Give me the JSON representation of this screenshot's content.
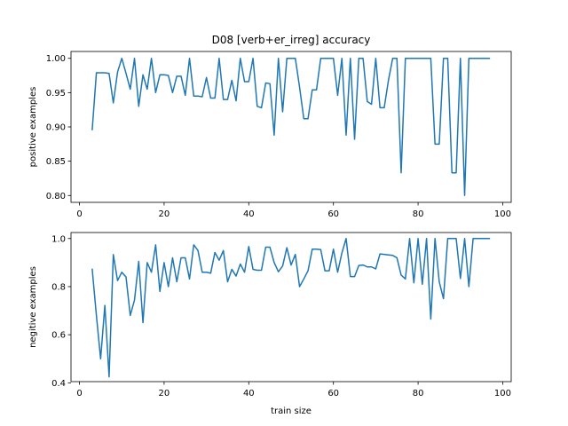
{
  "chart_data": {
    "title": "D08 [verb+er_irreg] accuracy",
    "type": "line",
    "color": "#1f77b4",
    "subplots": [
      {
        "type": "line",
        "ylabel": "positive examples",
        "xlabel": "",
        "xlim": [
          -2,
          102
        ],
        "ylim": [
          0.79,
          1.01
        ],
        "xticks": [
          0,
          20,
          40,
          60,
          80,
          100
        ],
        "yticks": [
          0.8,
          0.85,
          0.9,
          0.95,
          1.0
        ],
        "ytick_labels": [
          "0.80",
          "0.85",
          "0.90",
          "0.95",
          "1.00"
        ],
        "grid": false,
        "series": [
          {
            "x": [
              3,
              4,
              5,
              6,
              7,
              8,
              9,
              10,
              11,
              12,
              13,
              14,
              15,
              16,
              17,
              18,
              19,
              20,
              21,
              22,
              23,
              24,
              25,
              26,
              27,
              28,
              29,
              30,
              31,
              32,
              33,
              34,
              35,
              36,
              37,
              38,
              39,
              40,
              41,
              42,
              43,
              44,
              45,
              46,
              47,
              48,
              49,
              50,
              51,
              52,
              53,
              54,
              55,
              56,
              57,
              58,
              59,
              60,
              61,
              62,
              63,
              64,
              65,
              66,
              67,
              68,
              69,
              70,
              71,
              72,
              73,
              74,
              75,
              76,
              77,
              78,
              79,
              80,
              81,
              82,
              83,
              84,
              85,
              86,
              87,
              88,
              89,
              90,
              91,
              92,
              93,
              94,
              95,
              96,
              97
            ],
            "y": [
              0.895,
              0.979,
              0.979,
              0.979,
              0.978,
              0.935,
              0.98,
              1.0,
              0.978,
              0.955,
              1.0,
              0.93,
              0.976,
              0.955,
              1.0,
              0.95,
              0.976,
              0.976,
              0.975,
              0.95,
              0.974,
              0.974,
              0.946,
              1.0,
              0.945,
              0.945,
              0.944,
              0.972,
              0.942,
              0.942,
              1.0,
              0.94,
              0.94,
              0.968,
              0.938,
              1.0,
              0.966,
              0.966,
              1.0,
              0.93,
              0.928,
              0.964,
              0.963,
              0.888,
              1.0,
              0.922,
              1.0,
              1.0,
              1.0,
              0.958,
              0.912,
              0.912,
              0.954,
              0.954,
              1.0,
              1.0,
              1.0,
              1.0,
              0.946,
              1.0,
              0.888,
              1.0,
              0.882,
              1.0,
              1.0,
              0.937,
              0.933,
              1.0,
              0.928,
              0.928,
              0.968,
              1.0,
              1.0,
              0.833,
              1.0,
              1.0,
              1.0,
              1.0,
              1.0,
              1.0,
              1.0,
              0.875,
              0.875,
              1.0,
              1.0,
              0.833,
              0.833,
              1.0,
              0.8,
              1.0,
              1.0,
              1.0,
              1.0,
              1.0,
              1.0
            ]
          }
        ]
      },
      {
        "type": "line",
        "ylabel": "negitive examples",
        "xlabel": "train size",
        "xlim": [
          -2,
          102
        ],
        "ylim": [
          0.405,
          1.025
        ],
        "xticks": [
          0,
          20,
          40,
          60,
          80,
          100
        ],
        "yticks": [
          0.4,
          0.6,
          0.8,
          1.0
        ],
        "ytick_labels": [
          "0.4",
          "0.6",
          "0.8",
          "1.0"
        ],
        "grid": false,
        "series": [
          {
            "x": [
              3,
              4,
              5,
              6,
              7,
              8,
              9,
              10,
              11,
              12,
              13,
              14,
              15,
              16,
              17,
              18,
              19,
              20,
              21,
              22,
              23,
              24,
              25,
              26,
              27,
              28,
              29,
              30,
              31,
              32,
              33,
              34,
              35,
              36,
              37,
              38,
              39,
              40,
              41,
              42,
              43,
              44,
              45,
              46,
              47,
              48,
              49,
              50,
              51,
              52,
              53,
              54,
              55,
              56,
              57,
              58,
              59,
              60,
              61,
              62,
              63,
              64,
              65,
              66,
              67,
              68,
              69,
              70,
              71,
              72,
              73,
              74,
              75,
              76,
              77,
              78,
              79,
              80,
              81,
              82,
              83,
              84,
              85,
              86,
              87,
              88,
              89,
              90,
              91,
              92,
              93,
              94,
              95,
              96,
              97
            ],
            "y": [
              0.875,
              0.68,
              0.5,
              0.722,
              0.425,
              0.933,
              0.825,
              0.86,
              0.84,
              0.68,
              0.744,
              0.905,
              0.65,
              0.9,
              0.86,
              0.974,
              0.78,
              0.9,
              0.8,
              0.92,
              0.82,
              0.92,
              0.92,
              0.832,
              0.974,
              0.95,
              0.86,
              0.86,
              0.856,
              0.942,
              0.91,
              0.95,
              0.82,
              0.872,
              0.844,
              0.894,
              0.86,
              0.967,
              0.872,
              0.868,
              0.868,
              0.964,
              0.964,
              0.9,
              0.862,
              0.886,
              0.962,
              0.89,
              0.934,
              0.8,
              0.832,
              0.866,
              0.956,
              0.956,
              0.954,
              0.866,
              0.866,
              0.956,
              0.86,
              0.94,
              1.0,
              0.842,
              0.842,
              0.888,
              0.89,
              0.882,
              0.882,
              0.874,
              0.936,
              0.934,
              0.932,
              0.93,
              0.92,
              0.848,
              0.832,
              1.0,
              0.816,
              1.0,
              0.81,
              1.0,
              0.665,
              1.0,
              0.82,
              0.75,
              1.0,
              1.0,
              1.0,
              0.834,
              1.0,
              0.8,
              1.0,
              1.0,
              1.0,
              1.0,
              1.0
            ]
          }
        ]
      }
    ]
  }
}
